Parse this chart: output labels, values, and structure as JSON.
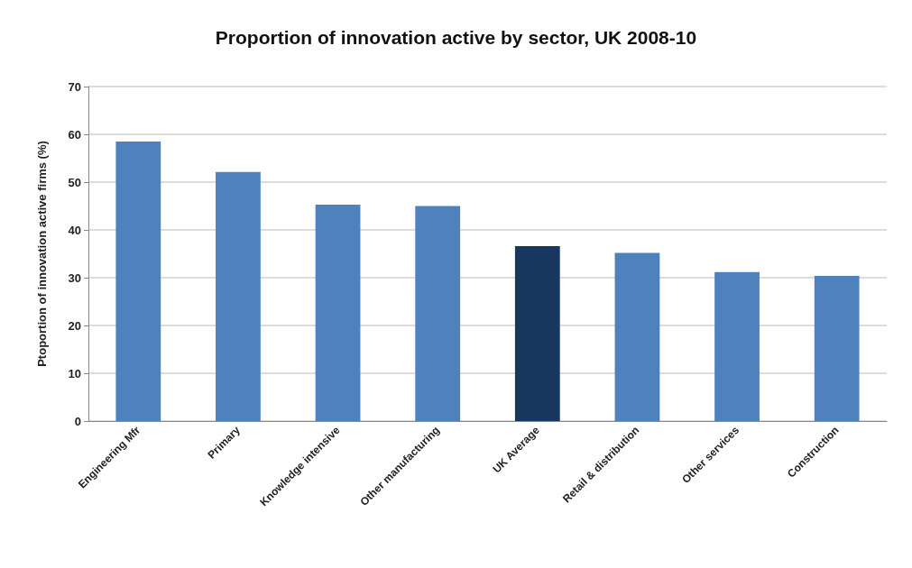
{
  "chart_data": {
    "type": "bar",
    "title": "Proportion of innovation active by sector, UK 2008-10",
    "ylabel": "Ptoportion of innovation active firms (%)",
    "categories": [
      "Engineering Mfr",
      "Primary",
      "Knowledge intensive",
      "Other manufacturing",
      "UK Average",
      "Retail & distribution",
      "Other services",
      "Construction"
    ],
    "values": [
      58.5,
      52.1,
      45.3,
      45.0,
      36.6,
      35.2,
      31.2,
      30.4
    ],
    "colors": [
      "#4f81bd",
      "#4f81bd",
      "#4f81bd",
      "#4f81bd",
      "#17375e",
      "#4f81bd",
      "#4f81bd",
      "#4f81bd"
    ],
    "ylim": [
      0,
      70
    ],
    "yticks": [
      0,
      10,
      20,
      30,
      40,
      50,
      60,
      70
    ],
    "grid": "y"
  }
}
